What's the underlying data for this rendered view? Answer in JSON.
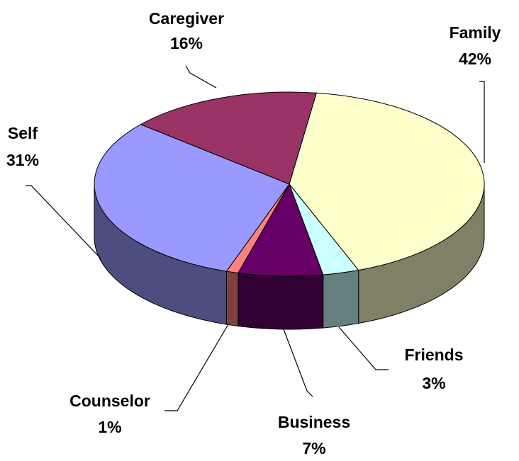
{
  "chart_data": {
    "type": "pie3d",
    "categories": [
      "Family",
      "Friends",
      "Business",
      "Counselor",
      "Self",
      "Caregiver"
    ],
    "values": [
      42,
      3,
      7,
      1,
      31,
      16
    ],
    "value_labels": [
      "42%",
      "3%",
      "7%",
      "1%",
      "31%",
      "16%"
    ],
    "colors": [
      "#FFFFCC",
      "#CCFFFF",
      "#660066",
      "#FF8080",
      "#9999FF",
      "#993366"
    ]
  }
}
